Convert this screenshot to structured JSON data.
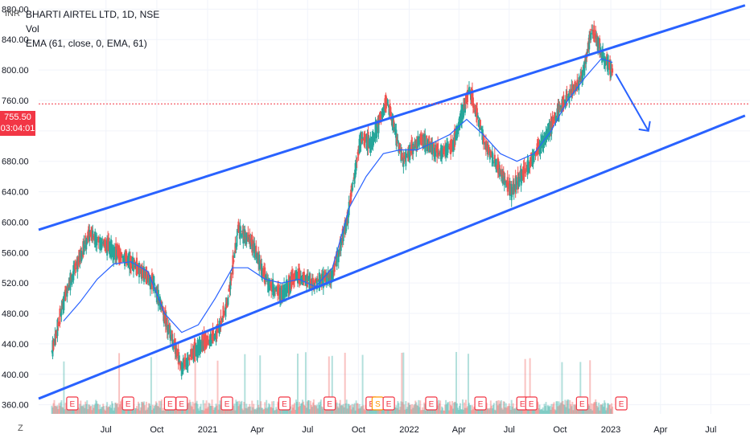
{
  "header": {
    "currency": "INR",
    "symbol_line": "BHARTI AIRTEL LTD, 1D, NSE",
    "vol_label": "Vol",
    "ema_label": "EMA (61, close, 0, EMA, 61)"
  },
  "price_badge": {
    "price": "755.50",
    "countdown": "03:04:01"
  },
  "scale_button": "Z",
  "colors": {
    "up": "#26a69a",
    "down": "#ef5350",
    "ema": "#2962ff",
    "channel": "#2962ff",
    "price_line": "#f23645",
    "grid": "#f0f3fa"
  },
  "chart_data": {
    "type": "line",
    "series": [
      {
        "name": "EMA (61, close, 0, EMA, 61)",
        "x": [
          "2020-04-15",
          "2020-05-15",
          "2020-06-15",
          "2020-07-15",
          "2020-08-15",
          "2020-09-15",
          "2020-10-15",
          "2020-11-15",
          "2020-12-15",
          "2021-01-15",
          "2021-02-15",
          "2021-03-15",
          "2021-04-15",
          "2021-05-15",
          "2021-06-15",
          "2021-07-15",
          "2021-08-15",
          "2021-09-15",
          "2021-10-15",
          "2021-11-15",
          "2021-12-15",
          "2022-01-15",
          "2022-02-15",
          "2022-03-15",
          "2022-04-15",
          "2022-05-15",
          "2022-06-15",
          "2022-07-15",
          "2022-08-15",
          "2022-09-15",
          "2022-10-15",
          "2022-11-15",
          "2022-12-15",
          "2023-01-04"
        ],
        "y": [
          470,
          495,
          525,
          545,
          548,
          535,
          480,
          455,
          465,
          500,
          540,
          540,
          525,
          520,
          525,
          515,
          540,
          620,
          660,
          690,
          695,
          695,
          705,
          715,
          735,
          715,
          690,
          680,
          690,
          720,
          760,
          790,
          815,
          810
        ]
      }
    ],
    "price_points": {
      "x": [
        "2020-03-25",
        "2020-04-20",
        "2020-06-01",
        "2020-07-10",
        "2020-08-20",
        "2020-09-25",
        "2020-10-20",
        "2020-11-15",
        "2020-12-20",
        "2021-01-15",
        "2021-02-05",
        "2021-02-25",
        "2021-03-20",
        "2021-04-20",
        "2021-05-15",
        "2021-06-10",
        "2021-07-15",
        "2021-08-15",
        "2021-09-10",
        "2021-10-05",
        "2021-10-25",
        "2021-11-22",
        "2021-12-20",
        "2022-01-20",
        "2022-02-25",
        "2022-03-20",
        "2022-04-20",
        "2022-05-20",
        "2022-06-20",
        "2022-07-05",
        "2022-08-10",
        "2022-09-10",
        "2022-10-10",
        "2022-11-10",
        "2022-11-28",
        "2022-12-20",
        "2023-01-04"
      ],
      "y": [
        430,
        510,
        585,
        565,
        545,
        520,
        465,
        410,
        440,
        450,
        490,
        590,
        575,
        520,
        505,
        530,
        520,
        530,
        600,
        710,
        705,
        760,
        680,
        710,
        690,
        700,
        775,
        700,
        660,
        640,
        680,
        720,
        760,
        790,
        855,
        815,
        800
      ]
    },
    "annotations": {
      "channel_upper": {
        "x": [
          "2020-03-01",
          "2023-09-01"
        ],
        "y": [
          590,
          885
        ]
      },
      "channel_lower": {
        "x": [
          "2020-03-01",
          "2023-09-01"
        ],
        "y": [
          368,
          740
        ]
      },
      "arrow": {
        "x": [
          "2023-01-10",
          "2023-03-10"
        ],
        "y": [
          795,
          720
        ]
      },
      "last_price_line": 755.5
    },
    "x_tick_labels": [
      "Jul",
      "Oct",
      "2021",
      "Apr",
      "Jul",
      "Oct",
      "2022",
      "Apr",
      "Jul",
      "Oct",
      "2023",
      "Apr",
      "Jul"
    ],
    "y_tick_labels": [
      "880.00",
      "840.00",
      "800.00",
      "760.00",
      "720.00",
      "680.00",
      "640.00",
      "600.00",
      "560.00",
      "520.00",
      "480.00",
      "440.00",
      "400.00",
      "360.00"
    ],
    "ylabel": "INR",
    "ylim": [
      348,
      892
    ],
    "xlim": [
      "2020-03-01",
      "2023-09-10"
    ],
    "grid": true,
    "volume_shown": true,
    "event_markers": [
      "E",
      "E",
      "E",
      "E",
      "E",
      "E",
      "E",
      "E",
      "S",
      "E",
      "E",
      "E",
      "E",
      "E",
      "E",
      "E"
    ]
  }
}
